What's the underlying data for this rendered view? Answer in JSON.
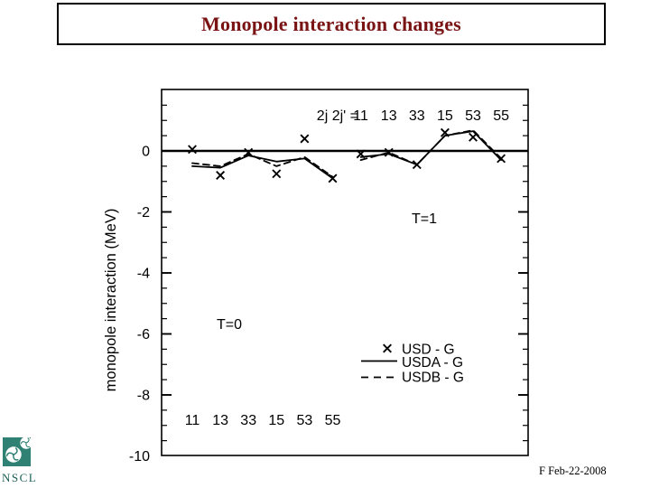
{
  "slide": {
    "title": "Monopole interaction changes",
    "footer_date": "F Feb-22-2008",
    "logo_text": "NSCL"
  },
  "colors": {
    "title_text": "#7a1414",
    "plot_ink": "#000000",
    "logo_teal": "#2f8173",
    "logo_text": "#1e6057",
    "background": "#ffffff"
  },
  "chart_data": {
    "type": "line",
    "title": "",
    "xlabel": "",
    "ylabel": "monopole interaction (MeV)",
    "ylim": [
      -10,
      2
    ],
    "y_major_step": 2,
    "y_minor_step": 0.5,
    "grid": false,
    "y_tick_values": [
      0,
      -2,
      -4,
      -6,
      -8,
      -10
    ],
    "y_tick_labels": [
      "0",
      "-2",
      "-4",
      "-6",
      "-8",
      "-10"
    ],
    "top_axis_prefix": "2j 2j' =",
    "categories": [
      "11",
      "13",
      "33",
      "15",
      "53",
      "55"
    ],
    "group_labels": [
      "T=0",
      "T=1"
    ],
    "zero_line": 0,
    "series": [
      {
        "name": "USD - G",
        "style": "x-marker",
        "T0": [
          0.05,
          -0.8,
          -0.05,
          -0.75,
          0.4,
          -0.9
        ],
        "T1": [
          -0.1,
          -0.05,
          -0.45,
          0.6,
          0.45,
          -0.25
        ]
      },
      {
        "name": "USDA - G",
        "style": "solid-line",
        "T0": [
          -0.5,
          -0.55,
          -0.15,
          -0.35,
          -0.25,
          -0.9
        ],
        "T1": [
          -0.2,
          -0.1,
          -0.45,
          0.5,
          0.65,
          -0.3
        ]
      },
      {
        "name": "USDB - G",
        "style": "dashed-line",
        "T0": [
          -0.4,
          -0.5,
          -0.1,
          -0.5,
          -0.2,
          -0.85
        ],
        "T1": [
          -0.3,
          -0.05,
          -0.45,
          0.5,
          0.68,
          -0.25
        ]
      }
    ],
    "legend_position": "inside-lower-right"
  }
}
